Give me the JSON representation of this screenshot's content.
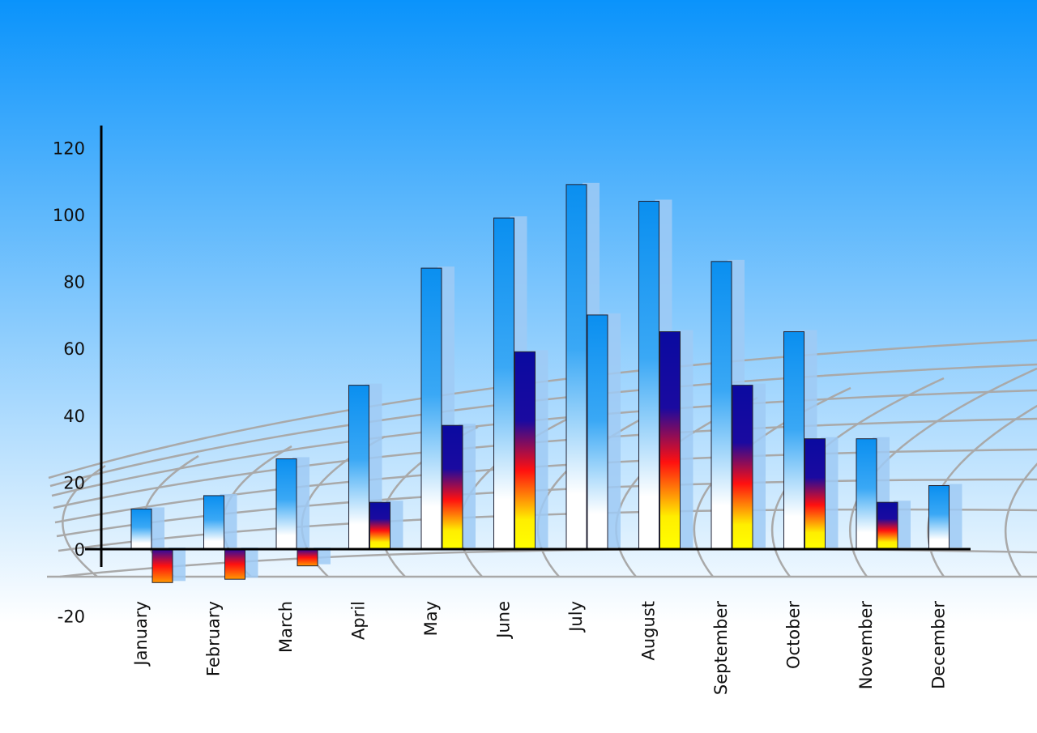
{
  "chart_data": {
    "type": "bar",
    "title": "",
    "xlabel": "",
    "ylabel": "",
    "ylim": [
      -20,
      120
    ],
    "yticks": [
      -20,
      0,
      20,
      40,
      60,
      80,
      100,
      120
    ],
    "grid": false,
    "categories": [
      "January",
      "February",
      "March",
      "April",
      "May",
      "June",
      "July",
      "August",
      "September",
      "October",
      "November",
      "December"
    ],
    "series": [
      {
        "values": [
          12,
          16,
          27,
          49,
          84,
          99,
          109,
          104,
          86,
          65,
          33,
          19
        ],
        "color": "#0a8ff0"
      },
      {
        "values": [
          -10,
          -9,
          -5,
          14,
          37,
          59,
          70,
          65,
          49,
          33,
          14,
          null
        ],
        "color": "#1010a0"
      }
    ]
  },
  "colors": {
    "background_top": "#0a93fb",
    "background_bottom": "#ffffff",
    "grid": "#a9a9a9",
    "axis": "#000000"
  }
}
